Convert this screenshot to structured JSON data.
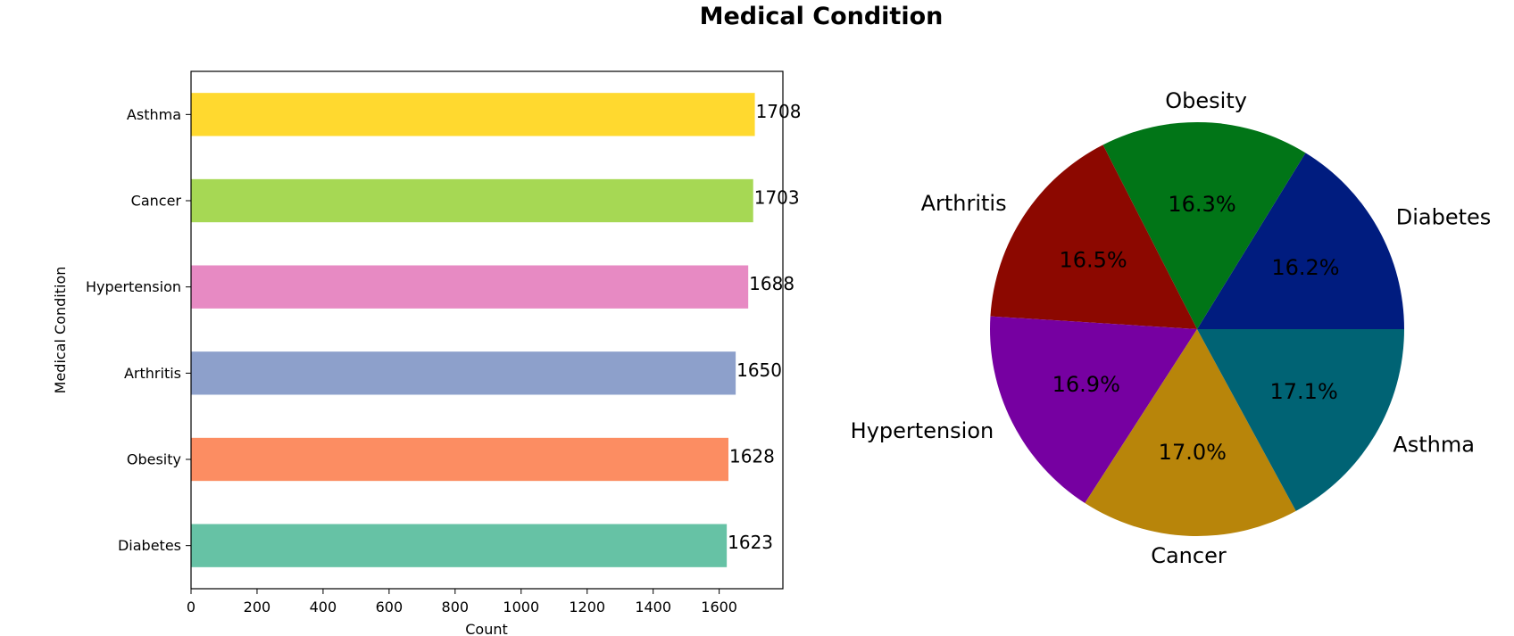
{
  "figure": {
    "title": "Medical Condition"
  },
  "chart_data": [
    {
      "type": "bar",
      "orientation": "horizontal",
      "categories": [
        "Diabetes",
        "Obesity",
        "Arthritis",
        "Hypertension",
        "Cancer",
        "Asthma"
      ],
      "values": [
        1623,
        1628,
        1650,
        1688,
        1703,
        1708
      ],
      "colors": [
        "#66c2a5",
        "#fc8d62",
        "#8da0cb",
        "#e78ac3",
        "#a6d854",
        "#ffd92f"
      ],
      "data_labels": [
        "1623",
        "1628",
        "1650",
        "1688",
        "1703",
        "1708"
      ],
      "xlabel": "Count",
      "ylabel": "Medical Condition",
      "xlim": [
        0,
        1793
      ],
      "xticks": [
        0,
        200,
        400,
        600,
        800,
        1000,
        1200,
        1400,
        1600
      ],
      "grid": false
    },
    {
      "type": "pie",
      "categories": [
        "Diabetes",
        "Obesity",
        "Arthritis",
        "Hypertension",
        "Cancer",
        "Asthma"
      ],
      "values": [
        1623,
        1628,
        1650,
        1688,
        1703,
        1708
      ],
      "percent_labels": [
        "16.2%",
        "16.3%",
        "16.5%",
        "16.9%",
        "17.0%",
        "17.1%"
      ],
      "colors": [
        "#001c7f",
        "#017517",
        "#8c0800",
        "#7600a1",
        "#b8850a",
        "#006374"
      ],
      "start_angle": 0,
      "direction": "counterclockwise"
    }
  ]
}
